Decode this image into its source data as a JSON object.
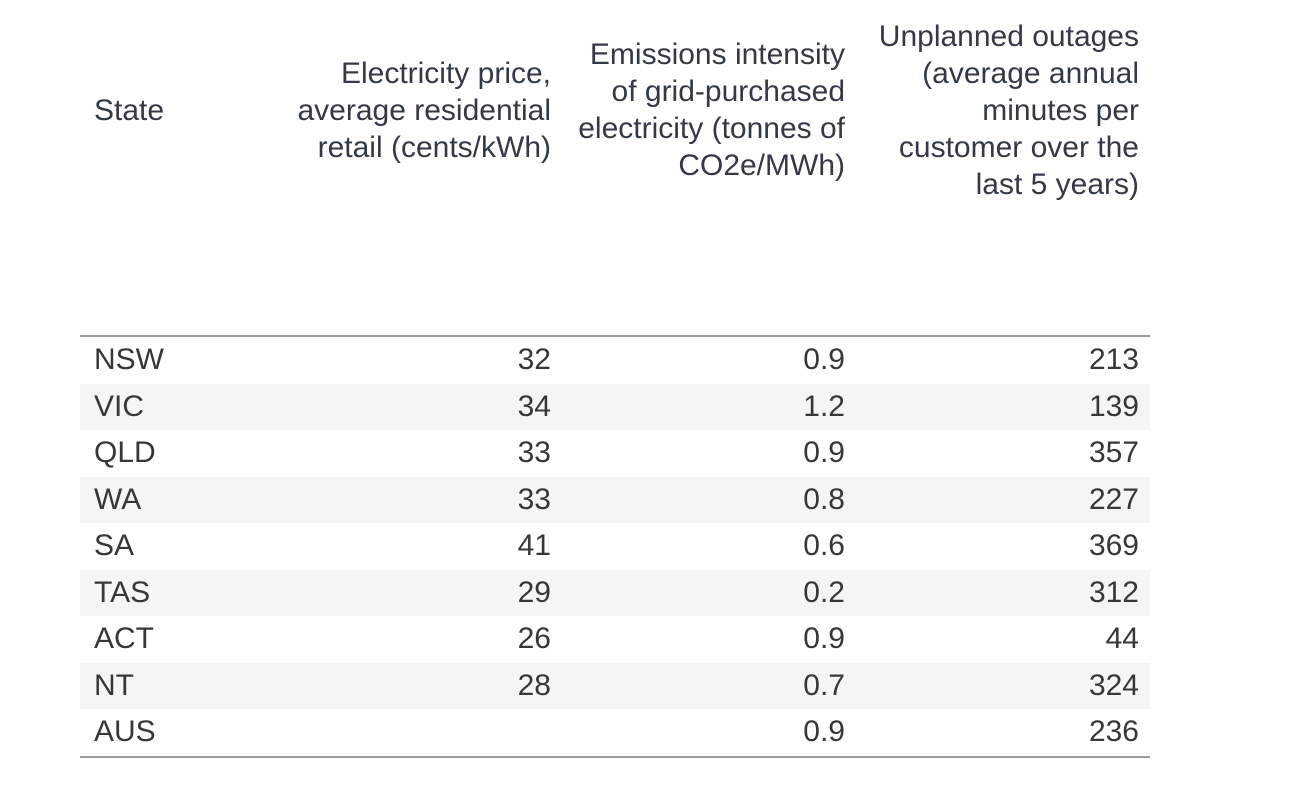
{
  "colors": {
    "band": "#f5f5f5",
    "border": "#9b9b9b",
    "header_text": "#333a46",
    "body_text": "#373737"
  },
  "header_display": {
    "state": "State",
    "price": "Electricity price,\naverage residential\nretail (cents/kWh)",
    "emissions": "Emissions intensity\nof grid-purchased\nelectricity (tonnes of\nCO2e/MWh)",
    "outages": "Unplanned outages\n(average annual\nminutes per\ncustomer over the\nlast 5 years)"
  },
  "chart_data": {
    "type": "table",
    "columns": [
      "State",
      "Electricity price, average residential retail (cents/kWh)",
      "Emissions intensity of grid-purchased electricity (tonnes of CO2e/MWh)",
      "Unplanned outages (average annual minutes per customer over the last 5 years)"
    ],
    "rows": [
      [
        "NSW",
        "32",
        "0.9",
        "213"
      ],
      [
        "VIC",
        "34",
        "1.2",
        "139"
      ],
      [
        "QLD",
        "33",
        "0.9",
        "357"
      ],
      [
        "WA",
        "33",
        "0.8",
        "227"
      ],
      [
        "SA",
        "41",
        "0.6",
        "369"
      ],
      [
        "TAS",
        "29",
        "0.2",
        "312"
      ],
      [
        "ACT",
        "26",
        "0.9",
        "44"
      ],
      [
        "NT",
        "28",
        "0.7",
        "324"
      ],
      [
        "AUS",
        "",
        "0.9",
        "236"
      ]
    ]
  }
}
